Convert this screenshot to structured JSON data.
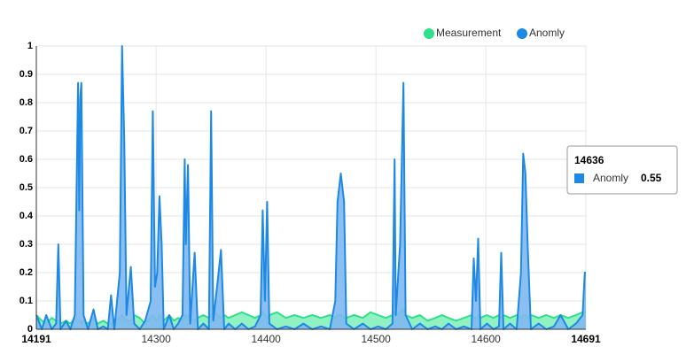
{
  "chart_data": {
    "type": "area",
    "x": [
      14191,
      14196,
      14200,
      14205,
      14209,
      14211,
      14213,
      14218,
      14222,
      14226,
      14229,
      14230,
      14231,
      14232,
      14234,
      14238,
      14243,
      14247,
      14252,
      14256,
      14259,
      14262,
      14267,
      14269,
      14271,
      14273,
      14277,
      14280,
      14285,
      14290,
      14295,
      14297,
      14299,
      14301,
      14303,
      14305,
      14307,
      14312,
      14316,
      14320,
      14324,
      14326,
      14327,
      14329,
      14331,
      14335,
      14338,
      14343,
      14348,
      14350,
      14352,
      14356,
      14359,
      14362,
      14366,
      14372,
      14378,
      14384,
      14390,
      14395,
      14397,
      14399,
      14401,
      14403,
      14410,
      14418,
      14426,
      14434,
      14442,
      14450,
      14458,
      14463,
      14465,
      14468,
      14471,
      14473,
      14480,
      14488,
      14495,
      14502,
      14509,
      14515,
      14517,
      14518,
      14522,
      14525,
      14527,
      14533,
      14540,
      14547,
      14554,
      14560,
      14566,
      14573,
      14580,
      14587,
      14589,
      14591,
      14593,
      14595,
      14601,
      14607,
      14612,
      14614,
      14616,
      14622,
      14628,
      14632,
      14634,
      14636,
      14638,
      14641,
      14648,
      14655,
      14662,
      14668,
      14675,
      14682,
      14688,
      14690,
      14691
    ],
    "series": [
      {
        "name": "Measurement",
        "color": "#2ee08a",
        "fill": "#86f0bd",
        "values": [
          0.05,
          0.03,
          0.02,
          0.04,
          0.03,
          0.03,
          0.02,
          0.03,
          0.02,
          0.04,
          0.03,
          0.03,
          0.03,
          0.02,
          0.03,
          0.02,
          0.04,
          0.02,
          0.03,
          0.02,
          0.02,
          0.03,
          0.04,
          0.05,
          0.04,
          0.03,
          0.03,
          0.05,
          0.04,
          0.02,
          0.04,
          0.05,
          0.04,
          0.03,
          0.05,
          0.04,
          0.03,
          0.05,
          0.03,
          0.04,
          0.03,
          0.05,
          0.04,
          0.05,
          0.04,
          0.03,
          0.04,
          0.05,
          0.04,
          0.05,
          0.06,
          0.05,
          0.04,
          0.05,
          0.04,
          0.05,
          0.06,
          0.05,
          0.04,
          0.05,
          0.06,
          0.05,
          0.04,
          0.05,
          0.06,
          0.04,
          0.05,
          0.04,
          0.05,
          0.04,
          0.05,
          0.04,
          0.05,
          0.05,
          0.04,
          0.04,
          0.05,
          0.04,
          0.06,
          0.05,
          0.04,
          0.05,
          0.06,
          0.05,
          0.06,
          0.07,
          0.05,
          0.04,
          0.05,
          0.03,
          0.04,
          0.05,
          0.04,
          0.03,
          0.04,
          0.05,
          0.04,
          0.04,
          0.05,
          0.04,
          0.05,
          0.04,
          0.05,
          0.04,
          0.05,
          0.04,
          0.05,
          0.04,
          0.05,
          0.05,
          0.04,
          0.05,
          0.04,
          0.05,
          0.04,
          0.05,
          0.04,
          0.05,
          0.06,
          0.06,
          0.06
        ]
      },
      {
        "name": "Anomly",
        "color": "#1e88e5",
        "fill": "#7fb8ef",
        "values": [
          0.05,
          0,
          0.05,
          0,
          0.02,
          0.3,
          0,
          0.03,
          0,
          0.05,
          0.87,
          0.42,
          0.82,
          0.87,
          0.05,
          0,
          0.07,
          0,
          0.01,
          0,
          0.12,
          0,
          0.2,
          1,
          0.67,
          0.05,
          0.22,
          0.02,
          0,
          0.03,
          0.1,
          0.77,
          0.15,
          0.2,
          0.47,
          0.3,
          0,
          0.05,
          0,
          0.02,
          0.05,
          0.6,
          0.3,
          0.58,
          0.02,
          0.27,
          0,
          0.02,
          0,
          0.77,
          0.03,
          0.17,
          0.28,
          0,
          0.02,
          0,
          0.02,
          0,
          0.01,
          0.05,
          0.42,
          0.1,
          0.45,
          0.02,
          0,
          0.01,
          0,
          0.02,
          0,
          0.01,
          0,
          0.1,
          0.45,
          0.55,
          0.45,
          0.02,
          0,
          0.02,
          0,
          0.01,
          0,
          0.02,
          0.6,
          0.05,
          0.3,
          0.87,
          0.05,
          0,
          0.02,
          0,
          0.01,
          0,
          0.02,
          0,
          0.01,
          0,
          0.25,
          0.1,
          0.32,
          0,
          0.02,
          0,
          0.01,
          0.27,
          0,
          0.02,
          0,
          0.2,
          0.62,
          0.55,
          0.3,
          0,
          0.02,
          0,
          0.01,
          0.05,
          0,
          0.02,
          0.05,
          0.2,
          0.2
        ]
      }
    ],
    "xlim": [
      14191,
      14691
    ],
    "xticks": [
      14191,
      14300,
      14400,
      14500,
      14600,
      14691
    ],
    "ylim": [
      0,
      1
    ],
    "yticks": [
      0,
      0.1,
      0.2,
      0.3,
      0.4,
      0.5,
      0.6,
      0.7,
      0.8,
      0.9,
      1
    ],
    "grid": true,
    "legend": "top-right",
    "tooltip": {
      "title": "14636",
      "series": "Anomly",
      "value": 0.55,
      "color": "#1e88e5"
    }
  }
}
